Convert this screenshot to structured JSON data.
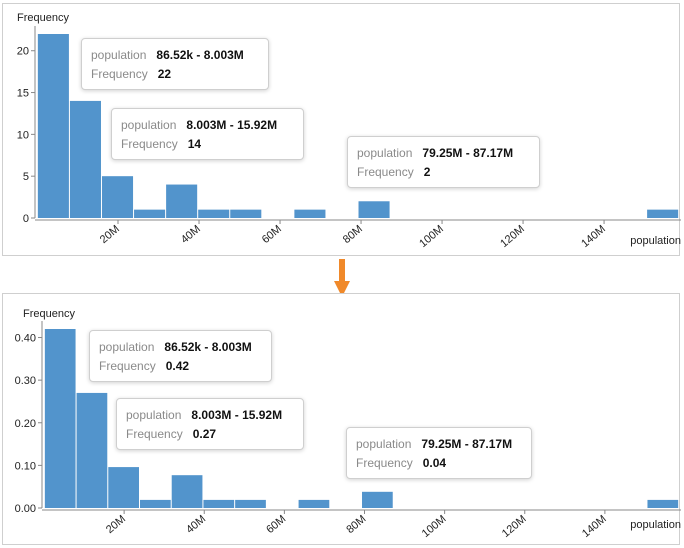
{
  "colors": {
    "bar": "#5294cc",
    "axis": "#888888",
    "arrow": "#f0892a",
    "tooltip_key": "#8a8a8a"
  },
  "chart_data": [
    {
      "type": "bar",
      "ylabel": "Frequency",
      "xlabel": "population",
      "bin_width_millions": 7.9167,
      "bin_start_millions": 0.08652,
      "bin_counts": [
        22,
        14,
        5,
        1,
        4,
        1,
        1,
        0,
        1,
        0,
        2,
        0,
        0,
        0,
        0,
        0,
        0,
        0,
        0,
        1
      ],
      "x_ticks": [
        "20M",
        "40M",
        "60M",
        "80M",
        "100M",
        "120M",
        "140M"
      ],
      "y_ticks": [
        "0",
        "5",
        "10",
        "15",
        "20"
      ],
      "ylim": [
        0,
        22
      ],
      "xlim_millions": [
        0,
        158.5
      ],
      "grid": false,
      "tooltips": [
        {
          "key1": "population",
          "val1": "86.52k - 8.003M",
          "key2": "Frequency",
          "val2": "22"
        },
        {
          "key1": "population",
          "val1": "8.003M - 15.92M",
          "key2": "Frequency",
          "val2": "14"
        },
        {
          "key1": "population",
          "val1": "79.25M - 87.17M",
          "key2": "Frequency",
          "val2": "2"
        }
      ]
    },
    {
      "type": "bar",
      "ylabel": "Frequency",
      "xlabel": "population",
      "bin_width_millions": 7.9167,
      "bin_start_millions": 0.08652,
      "bin_counts": [
        0.42,
        0.27,
        0.096,
        0.019,
        0.077,
        0.019,
        0.019,
        0,
        0.019,
        0,
        0.038,
        0,
        0,
        0,
        0,
        0,
        0,
        0,
        0,
        0.019
      ],
      "x_ticks": [
        "20M",
        "40M",
        "60M",
        "80M",
        "100M",
        "120M",
        "140M"
      ],
      "y_ticks": [
        "0.00",
        "0.10",
        "0.20",
        "0.30",
        "0.40"
      ],
      "ylim": [
        0,
        0.42
      ],
      "xlim_millions": [
        0,
        158.5
      ],
      "grid": false,
      "tooltips": [
        {
          "key1": "population",
          "val1": "86.52k - 8.003M",
          "key2": "Frequency",
          "val2": "0.42"
        },
        {
          "key1": "population",
          "val1": "8.003M - 15.92M",
          "key2": "Frequency",
          "val2": "0.27"
        },
        {
          "key1": "population",
          "val1": "79.25M - 87.17M",
          "key2": "Frequency",
          "val2": "0.04"
        }
      ]
    }
  ]
}
